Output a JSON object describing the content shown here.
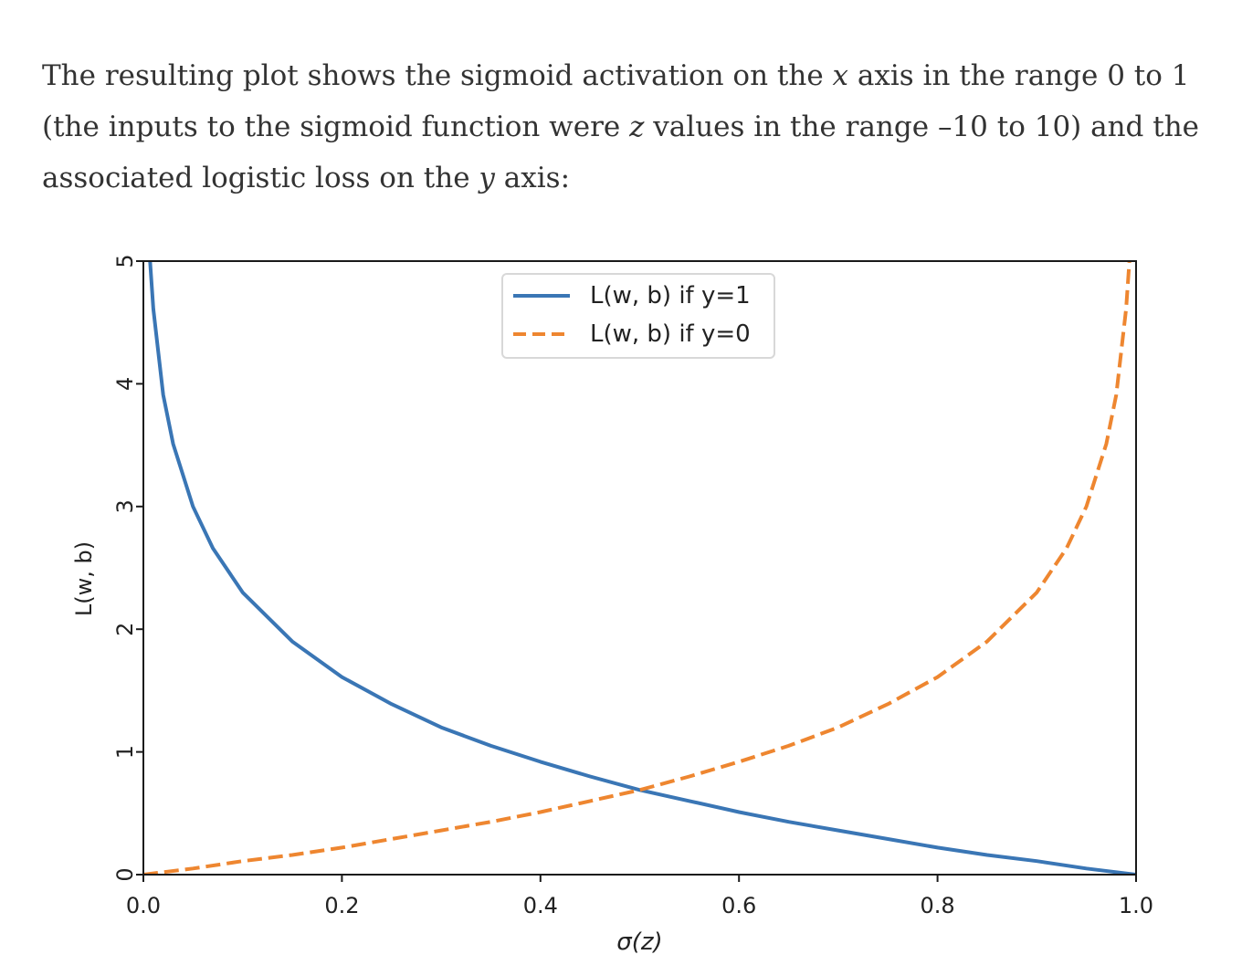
{
  "intro": {
    "part1": "The resulting plot shows the sigmoid activation on the ",
    "var_x": "x",
    "part2": " axis in the range 0 to 1 (the inputs to the sigmoid function were ",
    "var_z": "z",
    "part3": " values in the range –10 to 10) and the associated logistic loss on the ",
    "var_y": "y",
    "part4": " axis:"
  },
  "chart_data": {
    "type": "line",
    "title": "",
    "xlabel": "σ(z)",
    "ylabel": "L(w, b)",
    "xlim": [
      0.0,
      1.0
    ],
    "ylim": [
      0,
      5
    ],
    "x_ticks": [
      "0.0",
      "0.2",
      "0.4",
      "0.6",
      "0.8",
      "1.0"
    ],
    "y_ticks": [
      "0",
      "1",
      "2",
      "3",
      "4",
      "5"
    ],
    "x_tick_values": [
      0.0,
      0.2,
      0.4,
      0.6,
      0.8,
      1.0
    ],
    "y_tick_values": [
      0,
      1,
      2,
      3,
      4,
      5
    ],
    "grid": false,
    "legend_position": "top-center",
    "series": [
      {
        "name": "L(w, b) if y=1",
        "style": "solid",
        "color": "#3a76b5",
        "x": [
          0.0067,
          0.01,
          0.02,
          0.03,
          0.05,
          0.07,
          0.1,
          0.15,
          0.2,
          0.25,
          0.3,
          0.35,
          0.4,
          0.45,
          0.5,
          0.55,
          0.6,
          0.65,
          0.7,
          0.75,
          0.8,
          0.85,
          0.9,
          0.95,
          1.0
        ],
        "y": [
          5.0,
          4.61,
          3.91,
          3.51,
          3.0,
          2.66,
          2.3,
          1.9,
          1.61,
          1.39,
          1.2,
          1.05,
          0.92,
          0.8,
          0.69,
          0.6,
          0.51,
          0.43,
          0.36,
          0.29,
          0.22,
          0.16,
          0.11,
          0.05,
          0.0
        ]
      },
      {
        "name": "L(w, b) if y=0",
        "style": "dashed",
        "color": "#ee8630",
        "x": [
          0.0,
          0.05,
          0.1,
          0.15,
          0.2,
          0.25,
          0.3,
          0.35,
          0.4,
          0.45,
          0.5,
          0.55,
          0.6,
          0.65,
          0.7,
          0.75,
          0.8,
          0.85,
          0.9,
          0.93,
          0.95,
          0.97,
          0.98,
          0.99,
          0.9933
        ],
        "y": [
          0.0,
          0.05,
          0.11,
          0.16,
          0.22,
          0.29,
          0.36,
          0.43,
          0.51,
          0.6,
          0.69,
          0.8,
          0.92,
          1.05,
          1.2,
          1.39,
          1.61,
          1.9,
          2.3,
          2.66,
          3.0,
          3.51,
          3.91,
          4.61,
          5.0
        ]
      }
    ]
  }
}
